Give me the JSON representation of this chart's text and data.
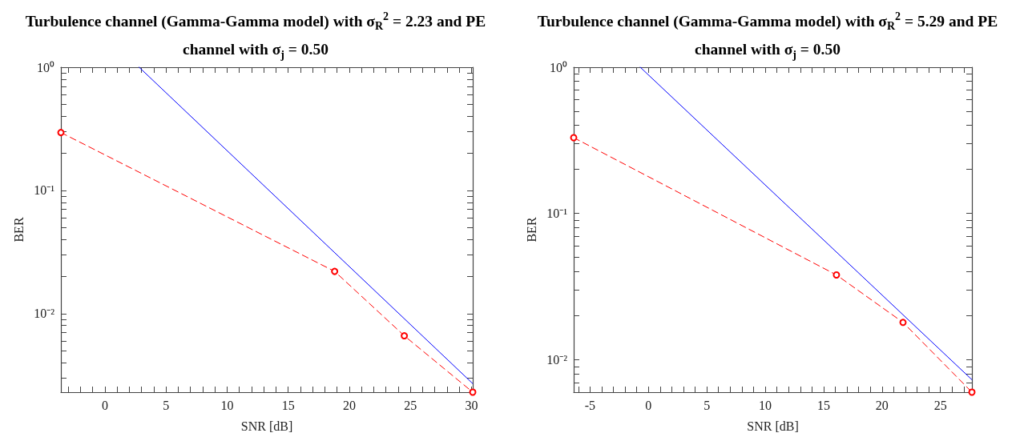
{
  "chart_data": [
    {
      "type": "line",
      "title": "Turbulence channel (Gamma-Gamma model) with σ$_{R}$$^{2}$ = 2.23 and PE channel with σ$_{j}$ = 0.50",
      "xlabel": "SNR [dB]",
      "ylabel": "BER",
      "log": "y",
      "grid": false,
      "xlim": [
        -3.6,
        30.1
      ],
      "ylim": [
        0.0023,
        1
      ],
      "xticks": [
        {
          "value": -3,
          "label": null
        },
        {
          "value": -2,
          "label": null
        },
        {
          "value": -1,
          "label": null
        },
        0,
        {
          "value": 1,
          "label": null
        },
        {
          "value": 2,
          "label": null
        },
        {
          "value": 3,
          "label": null
        },
        {
          "value": 4,
          "label": null
        },
        5,
        {
          "value": 6,
          "label": null
        },
        {
          "value": 7,
          "label": null
        },
        {
          "value": 8,
          "label": null
        },
        {
          "value": 9,
          "label": null
        },
        10,
        {
          "value": 11,
          "label": null
        },
        {
          "value": 12,
          "label": null
        },
        {
          "value": 13,
          "label": null
        },
        {
          "value": 14,
          "label": null
        },
        15,
        {
          "value": 16,
          "label": null
        },
        {
          "value": 17,
          "label": null
        },
        {
          "value": 18,
          "label": null
        },
        {
          "value": 19,
          "label": null
        },
        20,
        {
          "value": 21,
          "label": null
        },
        {
          "value": 22,
          "label": null
        },
        {
          "value": 23,
          "label": null
        },
        {
          "value": 24,
          "label": null
        },
        25,
        {
          "value": 26,
          "label": null
        },
        {
          "value": 27,
          "label": null
        },
        {
          "value": 28,
          "label": null
        },
        {
          "value": 29,
          "label": null
        },
        30
      ],
      "yticks": [
        {
          "value": 0.003,
          "label": null
        },
        {
          "value": 0.004,
          "label": null
        },
        {
          "value": 0.005,
          "label": null
        },
        {
          "value": 0.006,
          "label": null
        },
        {
          "value": 0.007,
          "label": null
        },
        {
          "value": 0.008,
          "label": null
        },
        {
          "value": 0.009,
          "label": null
        },
        {
          "value": 0.01,
          "label": "10⁻²"
        },
        {
          "value": 0.02,
          "label": null
        },
        {
          "value": 0.03,
          "label": null
        },
        {
          "value": 0.04,
          "label": null
        },
        {
          "value": 0.05,
          "label": null
        },
        {
          "value": 0.06,
          "label": null
        },
        {
          "value": 0.07,
          "label": null
        },
        {
          "value": 0.08,
          "label": null
        },
        {
          "value": 0.09,
          "label": null
        },
        {
          "value": 0.1,
          "label": "10⁻¹"
        },
        {
          "value": 0.2,
          "label": null
        },
        {
          "value": 0.3,
          "label": null
        },
        {
          "value": 0.4,
          "label": null
        },
        {
          "value": 0.5,
          "label": null
        },
        {
          "value": 0.6,
          "label": null
        },
        {
          "value": 0.7,
          "label": null
        },
        {
          "value": 0.8,
          "label": null
        },
        {
          "value": 0.9,
          "label": null
        },
        {
          "value": 1,
          "label": "10⁰"
        }
      ],
      "series": [
        {
          "color": "#0000ff",
          "x": [
            2.8,
            30.1
          ],
          "values": [
            1,
            0.0027
          ],
          "marker": "none",
          "line_style": "solid"
        },
        {
          "color": "#ff0000",
          "x": [
            -3.6,
            18.8,
            24.5,
            30.1
          ],
          "values": [
            0.295,
            0.022,
            0.0066,
            0.0023
          ],
          "marker": "circle",
          "line_style": "dashed"
        }
      ]
    },
    {
      "type": "line",
      "title": "Turbulence channel (Gamma-Gamma model) with σ$_{R}$$^{2}$ = 5.29 and PE channel with σ$_{j}$ = 0.50",
      "xlabel": "SNR [dB]",
      "ylabel": "BER",
      "log": "y",
      "grid": false,
      "xlim": [
        -6.4,
        27.7
      ],
      "ylim": [
        0.006,
        1
      ],
      "xticks": [
        {
          "value": -6,
          "label": null
        },
        -5,
        {
          "value": -4,
          "label": null
        },
        {
          "value": -3,
          "label": null
        },
        {
          "value": -2,
          "label": null
        },
        {
          "value": -1,
          "label": null
        },
        0,
        {
          "value": 1,
          "label": null
        },
        {
          "value": 2,
          "label": null
        },
        {
          "value": 3,
          "label": null
        },
        {
          "value": 4,
          "label": null
        },
        5,
        {
          "value": 6,
          "label": null
        },
        {
          "value": 7,
          "label": null
        },
        {
          "value": 8,
          "label": null
        },
        {
          "value": 9,
          "label": null
        },
        10,
        {
          "value": 11,
          "label": null
        },
        {
          "value": 12,
          "label": null
        },
        {
          "value": 13,
          "label": null
        },
        {
          "value": 14,
          "label": null
        },
        15,
        {
          "value": 16,
          "label": null
        },
        {
          "value": 17,
          "label": null
        },
        {
          "value": 18,
          "label": null
        },
        {
          "value": 19,
          "label": null
        },
        20,
        {
          "value": 21,
          "label": null
        },
        {
          "value": 22,
          "label": null
        },
        {
          "value": 23,
          "label": null
        },
        {
          "value": 24,
          "label": null
        },
        25,
        {
          "value": 26,
          "label": null
        },
        {
          "value": 27,
          "label": null
        }
      ],
      "yticks": [
        {
          "value": 0.007,
          "label": null
        },
        {
          "value": 0.008,
          "label": null
        },
        {
          "value": 0.009,
          "label": null
        },
        {
          "value": 0.01,
          "label": "10⁻²"
        },
        {
          "value": 0.02,
          "label": null
        },
        {
          "value": 0.03,
          "label": null
        },
        {
          "value": 0.04,
          "label": null
        },
        {
          "value": 0.05,
          "label": null
        },
        {
          "value": 0.06,
          "label": null
        },
        {
          "value": 0.07,
          "label": null
        },
        {
          "value": 0.08,
          "label": null
        },
        {
          "value": 0.09,
          "label": null
        },
        {
          "value": 0.1,
          "label": "10⁻¹"
        },
        {
          "value": 0.2,
          "label": null
        },
        {
          "value": 0.3,
          "label": null
        },
        {
          "value": 0.4,
          "label": null
        },
        {
          "value": 0.5,
          "label": null
        },
        {
          "value": 0.6,
          "label": null
        },
        {
          "value": 0.7,
          "label": null
        },
        {
          "value": 0.8,
          "label": null
        },
        {
          "value": 0.9,
          "label": null
        },
        {
          "value": 1,
          "label": "10⁰"
        }
      ],
      "series": [
        {
          "color": "#0000ff",
          "x": [
            -0.7,
            27.7
          ],
          "values": [
            1,
            0.0073
          ],
          "marker": "none",
          "line_style": "solid"
        },
        {
          "color": "#ff0000",
          "x": [
            -6.4,
            16.1,
            21.8,
            27.7
          ],
          "values": [
            0.33,
            0.038,
            0.018,
            0.006
          ],
          "marker": "circle",
          "line_style": "dashed"
        }
      ]
    }
  ]
}
